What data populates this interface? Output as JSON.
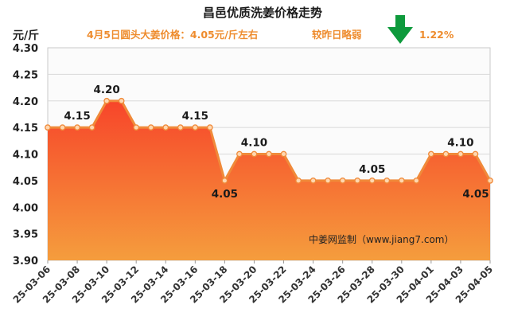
{
  "chart_data": {
    "type": "area",
    "title": "昌邑优质洗姜价格走势",
    "subtitle": "4月5日圆头大姜价格：4.05元/斤左右",
    "change_text": "较昨日略弱",
    "change_pct": "1.22%",
    "change_direction": "down",
    "ylabel": "元/斤",
    "watermark": "中姜网监制（www.jiang7.com）",
    "ylim": [
      3.9,
      4.3
    ],
    "y_ticks": [
      "3.90",
      "3.95",
      "4.00",
      "4.05",
      "4.10",
      "4.15",
      "4.20",
      "4.25",
      "4.30"
    ],
    "x_tick_labels": [
      "25-03-06",
      "25-03-08",
      "25-03-10",
      "25-03-12",
      "25-03-14",
      "25-03-16",
      "25-03-18",
      "25-03-20",
      "25-03-22",
      "25-03-24",
      "25-03-26",
      "25-03-28",
      "25-03-30",
      "25-04-01",
      "25-04-03",
      "25-04-05"
    ],
    "series": [
      {
        "x": [
          "25-03-06",
          "25-03-07",
          "25-03-08",
          "25-03-09",
          "25-03-10",
          "25-03-11",
          "25-03-12",
          "25-03-13",
          "25-03-14",
          "25-03-15",
          "25-03-16",
          "25-03-17",
          "25-03-18",
          "25-03-19",
          "25-03-20",
          "25-03-21",
          "25-03-22",
          "25-03-23",
          "25-03-24",
          "25-03-25",
          "25-03-26",
          "25-03-27",
          "25-03-28",
          "25-03-29",
          "25-03-30",
          "25-03-31",
          "25-04-01",
          "25-04-02",
          "25-04-03",
          "25-04-04",
          "25-04-05"
        ],
        "values": [
          4.15,
          4.15,
          4.15,
          4.15,
          4.2,
          4.2,
          4.15,
          4.15,
          4.15,
          4.15,
          4.15,
          4.15,
          4.05,
          4.1,
          4.1,
          4.1,
          4.1,
          4.05,
          4.05,
          4.05,
          4.05,
          4.05,
          4.05,
          4.05,
          4.05,
          4.05,
          4.1,
          4.1,
          4.1,
          4.1,
          4.05
        ]
      }
    ],
    "data_labels": [
      {
        "label": "4.15",
        "x": "25-03-08",
        "position": "above"
      },
      {
        "label": "4.20",
        "x": "25-03-10",
        "position": "above"
      },
      {
        "label": "4.15",
        "x": "25-03-16",
        "position": "above"
      },
      {
        "label": "4.05",
        "x": "25-03-18",
        "position": "below"
      },
      {
        "label": "4.10",
        "x": "25-03-20",
        "position": "above"
      },
      {
        "label": "4.05",
        "x": "25-03-28",
        "position": "above"
      },
      {
        "label": "4.10",
        "x": "25-04-03",
        "position": "above"
      },
      {
        "label": "4.05",
        "x": "25-04-05",
        "position": "below"
      }
    ],
    "grid": "horizontal",
    "legend": "none",
    "colors": {
      "line": "#f08a3a",
      "marker_fill": "#ffd7b0",
      "area_top": "#f7452a",
      "area_bottom": "#f59d3d",
      "plot_background": "#fbfbfb",
      "grid": "#d9d9d9",
      "subtitle": "#ee8c2e",
      "arrow": "#0e9a3c"
    }
  }
}
